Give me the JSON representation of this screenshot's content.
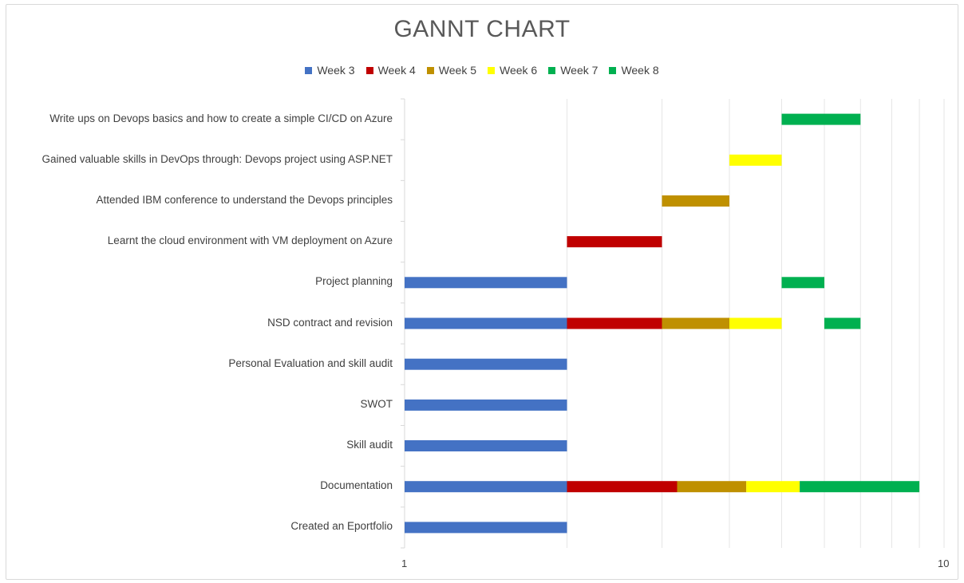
{
  "chart_data": {
    "type": "bar",
    "orientation": "horizontal",
    "stacked": true,
    "title": "GANNT CHART",
    "x_scale": "log",
    "xlim": [
      1,
      10
    ],
    "x_tick_labels": [
      "1",
      "10"
    ],
    "grid": true,
    "legend_position": "top",
    "categories": [
      "Write ups on Devops basics and how to create a simple CI/CD on Azure",
      "Gained valuable skills in DevOps through: Devops project using ASP.NET",
      "Attended IBM conference to understand the Devops principles",
      "Learnt the cloud environment with VM deployment on Azure ",
      "Project planning",
      "NSD contract and revision",
      "Personal Evaluation and skill audit",
      "SWOT",
      "Skill audit",
      "Documentation",
      "Created an Eportfolio"
    ],
    "series": [
      {
        "name": "Week 3",
        "color": "#4472C4",
        "segments": [
          null,
          null,
          null,
          null,
          [
            1,
            2
          ],
          [
            1,
            2
          ],
          [
            1,
            2
          ],
          [
            1,
            2
          ],
          [
            1,
            2
          ],
          [
            1,
            2
          ],
          [
            1,
            2
          ]
        ]
      },
      {
        "name": "Week 4",
        "color": "#C00000",
        "segments": [
          null,
          null,
          null,
          [
            2,
            3
          ],
          null,
          [
            2,
            3
          ],
          null,
          null,
          null,
          [
            2,
            3.2
          ],
          null
        ]
      },
      {
        "name": "Week 5",
        "color": "#BF9000",
        "segments": [
          null,
          null,
          [
            3,
            4
          ],
          null,
          null,
          [
            3,
            4
          ],
          null,
          null,
          null,
          [
            3.2,
            4.3
          ],
          null
        ]
      },
      {
        "name": "Week 6",
        "color": "#FFFF00",
        "segments": [
          null,
          [
            4,
            5
          ],
          null,
          null,
          null,
          [
            4,
            5
          ],
          null,
          null,
          null,
          [
            4.3,
            5.4
          ],
          null
        ]
      },
      {
        "name": "Week 7",
        "color": "#00B050",
        "segments": [
          [
            5,
            7
          ],
          null,
          null,
          null,
          [
            5,
            6
          ],
          null,
          null,
          null,
          null,
          [
            5.4,
            9
          ],
          null
        ]
      },
      {
        "name": "Week 8",
        "color": "#00B050",
        "segments": [
          null,
          null,
          null,
          null,
          null,
          [
            6,
            7
          ],
          null,
          null,
          null,
          null,
          null
        ]
      }
    ]
  }
}
